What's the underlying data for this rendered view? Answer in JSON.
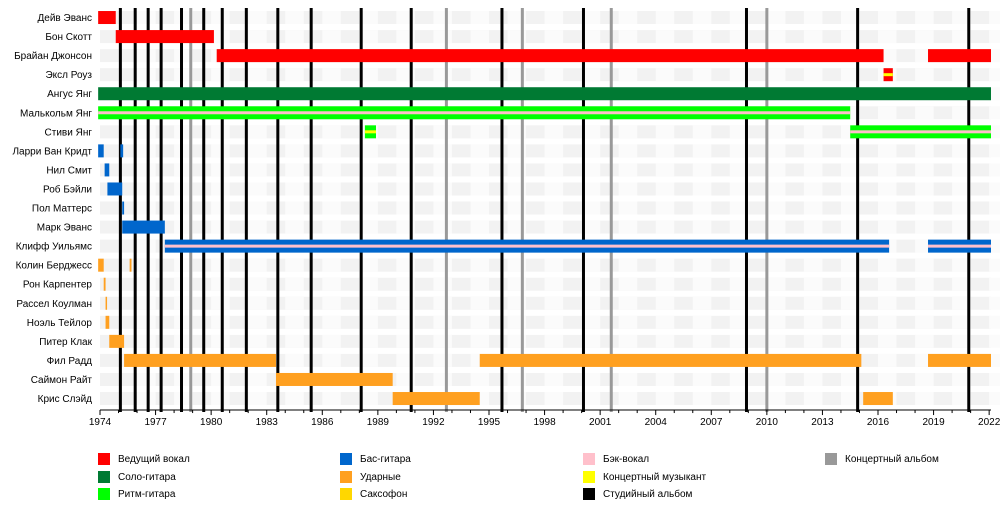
{
  "chart_data": {
    "type": "timeline",
    "x_range": [
      1974,
      2022.1
    ],
    "x_ticks": [
      "1974",
      "1977",
      "1980",
      "1983",
      "1986",
      "1989",
      "1992",
      "1995",
      "1998",
      "2001",
      "2004",
      "2007",
      "2010",
      "2013",
      "2016",
      "2019",
      "2022"
    ],
    "colors": {
      "lead_vocals": "#ff0000",
      "lead_guitar": "#007a33",
      "rhythm_guitar": "#00ff00",
      "bass": "#0066cc",
      "drums": "#ffa020",
      "saxophone": "#ffd700",
      "backing_vocals": "#ffc0cb",
      "touring": "#ffff00",
      "studio_album": "#000000",
      "live_album": "#999999"
    },
    "members": [
      {
        "name": "Дейв Эванс",
        "periods": [
          {
            "start": 1973.9,
            "end": 1974.85,
            "role": "lead_vocals"
          }
        ]
      },
      {
        "name": "Бон Скотт",
        "periods": [
          {
            "start": 1974.85,
            "end": 1980.15,
            "role": "lead_vocals"
          }
        ]
      },
      {
        "name": "Брайан Джонсон",
        "periods": [
          {
            "start": 1980.3,
            "end": 2016.3,
            "role": "lead_vocals"
          },
          {
            "start": 2018.7,
            "end": 2022.1,
            "role": "lead_vocals"
          }
        ]
      },
      {
        "name": "Эксл Роуз",
        "periods": [
          {
            "start": 2016.3,
            "end": 2016.8,
            "role": "lead_vocals",
            "secondary": "touring"
          }
        ]
      },
      {
        "name": "Ангус Янг",
        "periods": [
          {
            "start": 1973.9,
            "end": 2022.1,
            "role": "lead_guitar"
          }
        ]
      },
      {
        "name": "Малькольм Янг",
        "periods": [
          {
            "start": 1973.9,
            "end": 2014.5,
            "role": "rhythm_guitar",
            "secondary": "backing_vocals"
          }
        ]
      },
      {
        "name": "Стиви Янг",
        "periods": [
          {
            "start": 1988.3,
            "end": 1988.9,
            "role": "rhythm_guitar",
            "secondary": "touring"
          },
          {
            "start": 2014.5,
            "end": 2022.1,
            "role": "rhythm_guitar",
            "secondary": "backing_vocals"
          }
        ]
      },
      {
        "name": "Ларри Ван Кридт",
        "periods": [
          {
            "start": 1973.9,
            "end": 1974.2,
            "role": "bass"
          },
          {
            "start": 1975.1,
            "end": 1975.25,
            "role": "bass"
          }
        ]
      },
      {
        "name": "Нил Смит",
        "periods": [
          {
            "start": 1974.25,
            "end": 1974.5,
            "role": "bass"
          }
        ]
      },
      {
        "name": "Роб Бэйли",
        "periods": [
          {
            "start": 1974.4,
            "end": 1975.2,
            "role": "bass"
          }
        ]
      },
      {
        "name": "Пол Маттерс",
        "periods": [
          {
            "start": 1975.2,
            "end": 1975.3,
            "role": "bass"
          }
        ]
      },
      {
        "name": "Марк Эванс",
        "periods": [
          {
            "start": 1975.2,
            "end": 1977.5,
            "role": "bass"
          }
        ]
      },
      {
        "name": "Клифф Уильямс",
        "periods": [
          {
            "start": 1977.5,
            "end": 2016.6,
            "role": "bass",
            "secondary": "backing_vocals"
          },
          {
            "start": 2018.7,
            "end": 2022.1,
            "role": "bass",
            "secondary": "backing_vocals"
          }
        ]
      },
      {
        "name": "Колин Берджесс",
        "periods": [
          {
            "start": 1973.9,
            "end": 1974.2,
            "role": "drums"
          },
          {
            "start": 1975.6,
            "end": 1975.7,
            "role": "drums"
          }
        ]
      },
      {
        "name": "Рон Карпентер",
        "periods": [
          {
            "start": 1974.2,
            "end": 1974.3,
            "role": "drums"
          }
        ]
      },
      {
        "name": "Рассел Коулман",
        "periods": [
          {
            "start": 1974.3,
            "end": 1974.35,
            "role": "drums"
          }
        ]
      },
      {
        "name": "Ноэль Тейлор",
        "periods": [
          {
            "start": 1974.3,
            "end": 1974.5,
            "role": "drums"
          }
        ]
      },
      {
        "name": "Питер Клак",
        "periods": [
          {
            "start": 1974.5,
            "end": 1975.3,
            "role": "drums"
          }
        ]
      },
      {
        "name": "Фил Радд",
        "periods": [
          {
            "start": 1975.3,
            "end": 1983.5,
            "role": "drums"
          },
          {
            "start": 1994.5,
            "end": 2015.1,
            "role": "drums"
          },
          {
            "start": 2018.7,
            "end": 2022.1,
            "role": "drums"
          }
        ]
      },
      {
        "name": "Саймон Райт",
        "periods": [
          {
            "start": 1983.5,
            "end": 1989.8,
            "role": "drums"
          }
        ]
      },
      {
        "name": "Крис Слэйд",
        "periods": [
          {
            "start": 1989.8,
            "end": 1994.5,
            "role": "drums"
          },
          {
            "start": 2015.2,
            "end": 2016.8,
            "role": "drums"
          }
        ]
      }
    ],
    "studio_albums": [
      1975.1,
      1975.9,
      1976.6,
      1977.3,
      1978.4,
      1979.6,
      1980.6,
      1981.9,
      1983.6,
      1985.4,
      1988.1,
      1990.8,
      1995.7,
      2000.1,
      2008.9,
      2014.9,
      2020.9
    ],
    "live_albums": [
      1978.9,
      1992.7,
      1996.8,
      2001.6,
      2010.0
    ]
  },
  "legend": [
    {
      "label": "Ведущий вокал",
      "color": "#ff0000"
    },
    {
      "label": "Соло-гитара",
      "color": "#007a33"
    },
    {
      "label": "Ритм-гитара",
      "color": "#00ff00"
    },
    {
      "label": "Бас-гитара",
      "color": "#0066cc"
    },
    {
      "label": "Ударные",
      "color": "#ffa020"
    },
    {
      "label": "Саксофон",
      "color": "#ffd700"
    },
    {
      "label": "Бэк-вокал",
      "color": "#ffc0cb"
    },
    {
      "label": "Концертный музыкант",
      "color": "#ffff00"
    },
    {
      "label": "Студийный альбом",
      "color": "#000000"
    },
    {
      "label": "Концертный альбом",
      "color": "#999999"
    }
  ]
}
